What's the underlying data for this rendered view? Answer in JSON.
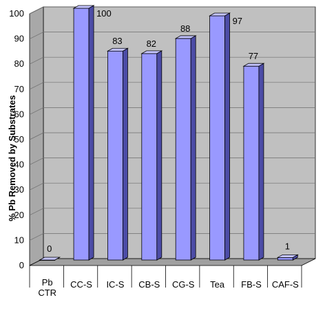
{
  "chart_data": {
    "type": "bar",
    "title": "",
    "xlabel": "",
    "ylabel": "% Pb Removed by Substrates",
    "categories": [
      [
        "Pb",
        "CTR"
      ],
      [
        "CC-S"
      ],
      [
        "IC-S"
      ],
      [
        "CB-S"
      ],
      [
        "CG-S"
      ],
      [
        "Tea"
      ],
      [
        "FB-S"
      ],
      [
        "CAF-S"
      ]
    ],
    "values": [
      0,
      100,
      83,
      82,
      88,
      97,
      77,
      1
    ],
    "data_labels": [
      "0",
      "100",
      "83",
      "82",
      "88",
      "97",
      "77",
      "1"
    ],
    "ylim": [
      0,
      100
    ],
    "yticks": [
      "0",
      "10",
      "20",
      "30",
      "40",
      "50",
      "60",
      "70",
      "80",
      "90",
      "100"
    ],
    "grid": true,
    "style": "3d-column"
  },
  "colors": {
    "bar_front": "#9999ff",
    "bar_side": "#4c4ca6",
    "bar_top": "#c4c4ff",
    "wall": "#c0c0c0",
    "floor": "#a0a0a0",
    "gridline": "#6e6e6e"
  }
}
